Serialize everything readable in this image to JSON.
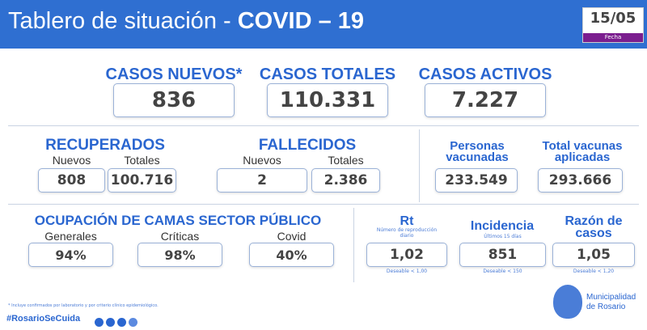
{
  "header": {
    "title_light": "Tablero de situación - ",
    "title_bold": "COVID – 19",
    "date": "15/05",
    "date_label": "Fecha"
  },
  "top": [
    {
      "label": "CASOS NUEVOS*",
      "value": "836"
    },
    {
      "label": "CASOS TOTALES",
      "value": "110.331"
    },
    {
      "label": "CASOS ACTIVOS",
      "value": "7.227"
    }
  ],
  "recuperados": {
    "title": "RECUPERADOS",
    "new_label": "Nuevos",
    "new": "808",
    "total_label": "Totales",
    "total": "100.716"
  },
  "fallecidos": {
    "title": "FALLECIDOS",
    "new_label": "Nuevos",
    "new": "2",
    "total_label": "Totales",
    "total": "2.386"
  },
  "vacunas": {
    "personas_label": "Personas vacunadas",
    "personas": "233.549",
    "total_label": "Total vacunas aplicadas",
    "total": "293.666"
  },
  "camas": {
    "title": "OCUPACIÓN DE CAMAS SECTOR PÚBLICO",
    "items": [
      {
        "label": "Generales",
        "value": "94%"
      },
      {
        "label": "Críticas",
        "value": "98%"
      },
      {
        "label": "Covid",
        "value": "40%"
      }
    ]
  },
  "indicadores": [
    {
      "label": "Rt",
      "note": "Número de reproducción diario",
      "value": "1,02",
      "target": "Deseable < 1,00"
    },
    {
      "label": "Incidencia",
      "note": "Últimos 15 días",
      "value": "851",
      "target": "Deseable < 150"
    },
    {
      "label": "Razón de casos",
      "note": "",
      "value": "1,05",
      "target": "Deseable < 1,20"
    }
  ],
  "footer": {
    "note": "* Incluye confirmados por laboratorio y por criterio clínico epidemiológico.",
    "hashtag": "#RosarioSeCuida",
    "logo_text": "Municipalidad de Rosario",
    "social": [
      "twitter-icon",
      "facebook-icon",
      "youtube-icon",
      "instagram-icon"
    ]
  }
}
